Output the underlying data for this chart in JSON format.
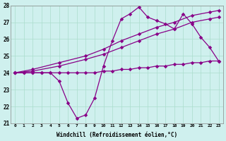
{
  "xlabel": "Windchill (Refroidissement éolien,°C)",
  "bg_color": "#cff0ee",
  "grid_color": "#aaddcc",
  "line_color": "#880088",
  "xlim": [
    -0.5,
    23.5
  ],
  "ylim": [
    21,
    28
  ],
  "yticks": [
    21,
    22,
    23,
    24,
    25,
    26,
    27,
    28
  ],
  "xticks": [
    0,
    1,
    2,
    3,
    4,
    5,
    6,
    7,
    8,
    9,
    10,
    11,
    12,
    13,
    14,
    15,
    16,
    17,
    18,
    19,
    20,
    21,
    22,
    23
  ],
  "line1": {
    "x": [
      0,
      1,
      2,
      3,
      4,
      5,
      6,
      7,
      8,
      9,
      10,
      11,
      12,
      13,
      14,
      15,
      16,
      17,
      18,
      19,
      20,
      21,
      22,
      23
    ],
    "y": [
      24.0,
      24.0,
      24.0,
      24.0,
      24.0,
      24.0,
      24.0,
      24.0,
      24.0,
      24.0,
      24.1,
      24.1,
      24.2,
      24.2,
      24.3,
      24.3,
      24.4,
      24.4,
      24.5,
      24.5,
      24.6,
      24.6,
      24.7,
      24.7
    ]
  },
  "line2": {
    "x": [
      0,
      2,
      5,
      8,
      10,
      12,
      14,
      16,
      18,
      20,
      22,
      23
    ],
    "y": [
      24.0,
      24.1,
      24.4,
      24.8,
      25.1,
      25.5,
      25.9,
      26.3,
      26.6,
      27.0,
      27.2,
      27.3
    ]
  },
  "line3": {
    "x": [
      0,
      2,
      5,
      8,
      10,
      12,
      14,
      16,
      18,
      20,
      22,
      23
    ],
    "y": [
      24.0,
      24.2,
      24.6,
      25.0,
      25.4,
      25.9,
      26.3,
      26.7,
      27.0,
      27.4,
      27.6,
      27.7
    ]
  },
  "line4": {
    "x": [
      0,
      1,
      2,
      3,
      4,
      5,
      6,
      7,
      8,
      9,
      10,
      11,
      12,
      13,
      14,
      15,
      16,
      17,
      18,
      19,
      20,
      21,
      22,
      23
    ],
    "y": [
      24.0,
      24.0,
      24.0,
      24.0,
      24.0,
      23.5,
      22.2,
      21.3,
      21.5,
      22.5,
      24.4,
      25.9,
      27.2,
      27.5,
      27.9,
      27.3,
      27.1,
      26.9,
      26.6,
      27.5,
      26.9,
      26.1,
      25.5,
      24.7
    ]
  }
}
